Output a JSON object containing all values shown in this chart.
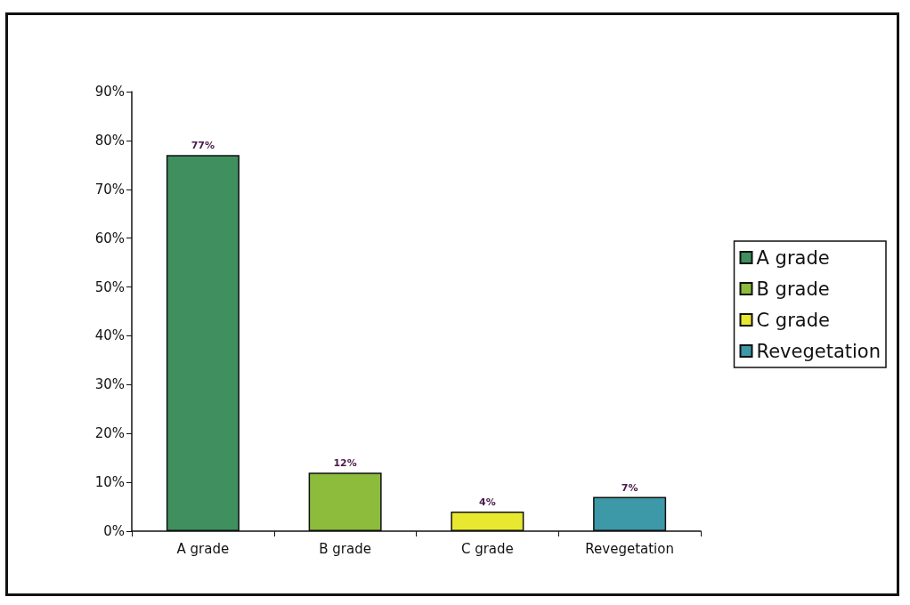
{
  "chart_data": {
    "type": "bar",
    "categories": [
      "A grade",
      "B grade",
      "C grade",
      "Revegetation"
    ],
    "series": [
      {
        "name": "A grade",
        "color": "#3f8f5f",
        "values": [
          77,
          null,
          null,
          null
        ],
        "value_labels": [
          "77%",
          null,
          null,
          null
        ]
      },
      {
        "name": "B grade",
        "color": "#8dbb3c",
        "values": [
          null,
          12,
          null,
          null
        ],
        "value_labels": [
          null,
          "12%",
          null,
          null
        ]
      },
      {
        "name": "C grade",
        "color": "#e8e830",
        "values": [
          null,
          null,
          4,
          null
        ],
        "value_labels": [
          null,
          null,
          "4%",
          null
        ]
      },
      {
        "name": "Revegetation",
        "color": "#3d98a8",
        "values": [
          null,
          null,
          null,
          7
        ],
        "value_labels": [
          null,
          null,
          null,
          "7%"
        ]
      }
    ],
    "ylim": [
      0,
      90
    ],
    "yticks": [
      {
        "value": 0,
        "label": "0%"
      },
      {
        "value": 10,
        "label": "10%"
      },
      {
        "value": 20,
        "label": "20%"
      },
      {
        "value": 30,
        "label": "30%"
      },
      {
        "value": 40,
        "label": "40%"
      },
      {
        "value": 50,
        "label": "50%"
      },
      {
        "value": 60,
        "label": "60%"
      },
      {
        "value": 70,
        "label": "70%"
      },
      {
        "value": 80,
        "label": "80%"
      },
      {
        "value": 90,
        "label": "90%"
      }
    ],
    "legend": "right",
    "grid": false
  }
}
